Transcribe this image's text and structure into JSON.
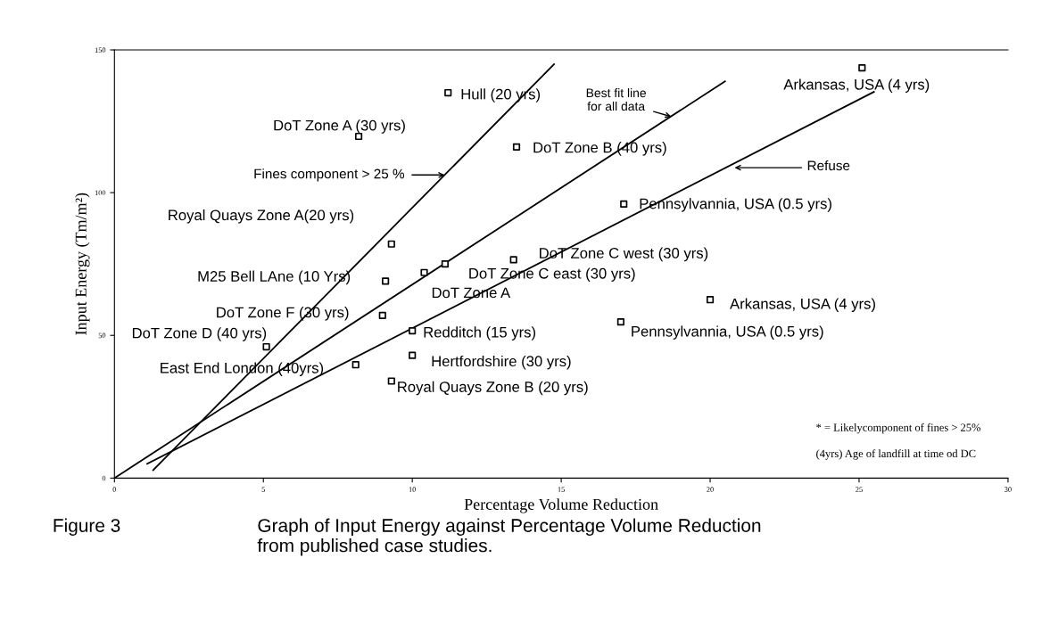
{
  "chart_data": {
    "type": "scatter",
    "xlabel": "Percentage Volume Reduction",
    "ylabel": "Input Energy (Tm/m²)",
    "marker": "square",
    "grid": false,
    "legend": false,
    "xlim": [
      0,
      30
    ],
    "ylim": [
      0,
      150
    ],
    "xticks": [
      0,
      5,
      10,
      15,
      20,
      25,
      30
    ],
    "yticks": [
      0,
      50,
      100,
      150
    ],
    "series": [
      {
        "color": "#000000",
        "x": [
          11.2,
          8.2,
          13.5,
          25.1,
          17.1,
          9.3,
          9.1,
          10.4,
          11.1,
          13.4,
          9.0,
          20.0,
          17.0,
          10.0,
          10.0,
          9.3,
          8.1,
          5.1
        ],
        "values": [
          135,
          119.7,
          116,
          143.7,
          96,
          82,
          69,
          72,
          75,
          76.5,
          57,
          62.5,
          54.7,
          51.6,
          43,
          34,
          39.7,
          46
        ]
      },
      {
        "type": "line",
        "marker": "none",
        "color": "#000000",
        "x": [
          1.3,
          14.76
        ],
        "values": [
          2.8,
          145
        ]
      },
      {
        "type": "line",
        "marker": "none",
        "color": "#000000",
        "x": [
          0,
          20.5
        ],
        "values": [
          0,
          139
        ]
      },
      {
        "type": "line",
        "marker": "none",
        "color": "#000000",
        "x": [
          1.1,
          25.5
        ],
        "values": [
          5,
          135.3
        ]
      }
    ],
    "annotations": [
      {
        "text": "Hull (20 yrs)",
        "x": 11.2,
        "y": 135
      },
      {
        "text": "DoT Zone A (30 yrs)",
        "x": 8.2,
        "y": 119.7
      },
      {
        "text": "DoT Zone B (40 yrs)",
        "x": 13.5,
        "y": 116
      },
      {
        "text": "Arkansas, USA (4 yrs)",
        "x": 25.1,
        "y": 143.7
      },
      {
        "text": "Pennsylvannia, USA (0.5 yrs)",
        "x": 17.1,
        "y": 96
      },
      {
        "text": "Royal Quays Zone A(20 yrs)",
        "x": 9.3,
        "y": 82
      },
      {
        "text": "M25 Bell LAne (10 Yrs)",
        "x": 9.1,
        "y": 69
      },
      {
        "text": "DoT Zone C west (30 yrs)",
        "x": 13.4,
        "y": 76.5
      },
      {
        "text": "DoT Zone C east (30 yrs)",
        "x": 11.1,
        "y": 75
      },
      {
        "text": "DoT Zone A",
        "x": 10.4,
        "y": 72
      },
      {
        "text": "DoT Zone F (30 yrs)",
        "x": 9.0,
        "y": 57
      },
      {
        "text": "Arkansas, USA (4 yrs)",
        "x": 20.0,
        "y": 62.5
      },
      {
        "text": "Pennsylvannia, USA (0.5 yrs)",
        "x": 17.0,
        "y": 54.7
      },
      {
        "text": "DoT Zone D (40 yrs)",
        "x": 5.1,
        "y": 46
      },
      {
        "text": "Redditch (15 yrs)",
        "x": 10.0,
        "y": 51.6
      },
      {
        "text": "Hertfordshire (30 yrs)",
        "x": 10.0,
        "y": 43
      },
      {
        "text": "East End London (40yrs)",
        "x": 8.1,
        "y": 39.7
      },
      {
        "text": "Royal Quays Zone B (20 yrs)",
        "x": 9.3,
        "y": 34
      },
      {
        "text": "Fines component > 25 %",
        "x": 11.09,
        "y": 106.2
      },
      {
        "text": "Best fit line\nfor all data",
        "x": 18.7,
        "y": 126.6
      },
      "Refuse",
      "* = Likelycomponent of fines > 25%",
      "(4yrs) Age of landfill at time od DC",
      "Figure 3",
      "Graph of Input Energy against Percentage Volume Reduction\nfrom published case studies."
    ]
  }
}
